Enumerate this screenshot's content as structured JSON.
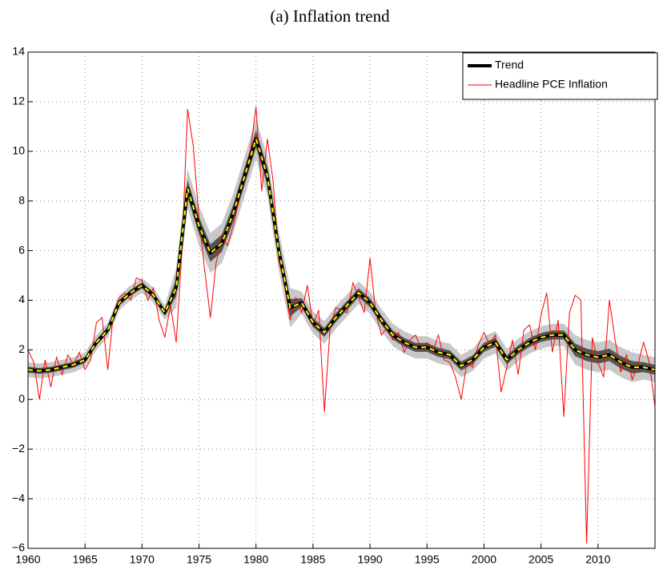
{
  "chart_data": {
    "type": "line",
    "title": "(a) Inflation trend",
    "xlim": [
      1960,
      2015
    ],
    "ylim": [
      -6,
      14
    ],
    "xticks": [
      1960,
      1965,
      1970,
      1975,
      1980,
      1985,
      1990,
      1995,
      2000,
      2005,
      2010
    ],
    "yticks": [
      {
        "value": -6,
        "label": "−6"
      },
      {
        "value": -4,
        "label": "−4"
      },
      {
        "value": -2,
        "label": "−2"
      },
      0,
      2,
      4,
      6,
      8,
      10,
      12,
      14
    ],
    "grid": true,
    "legend": "upper right",
    "dash_color": "#ffff00",
    "series": [
      {
        "name": "Trend",
        "color": "#000000",
        "x": [
          1960,
          1961,
          1962,
          1963,
          1964,
          1965,
          1966,
          1967,
          1968,
          1969,
          1970,
          1971,
          1972,
          1973,
          1974,
          1975,
          1976,
          1977,
          1978,
          1979,
          1980,
          1981,
          1982,
          1983,
          1984,
          1985,
          1986,
          1987,
          1988,
          1989,
          1990,
          1991,
          1992,
          1993,
          1994,
          1995,
          1996,
          1997,
          1998,
          1999,
          2000,
          2001,
          2002,
          2003,
          2004,
          2005,
          2006,
          2007,
          2008,
          2009,
          2010,
          2011,
          2012,
          2013,
          2014,
          2015
        ],
        "values": [
          1.2,
          1.15,
          1.2,
          1.3,
          1.4,
          1.6,
          2.3,
          2.8,
          3.9,
          4.3,
          4.6,
          4.2,
          3.5,
          4.5,
          8.5,
          7.0,
          5.9,
          6.3,
          7.5,
          9.0,
          10.5,
          9.0,
          6.0,
          3.7,
          3.9,
          3.1,
          2.7,
          3.3,
          3.8,
          4.3,
          3.9,
          3.2,
          2.6,
          2.3,
          2.1,
          2.1,
          1.9,
          1.8,
          1.35,
          1.6,
          2.1,
          2.3,
          1.6,
          2.0,
          2.3,
          2.5,
          2.6,
          2.6,
          2.0,
          1.8,
          1.7,
          1.8,
          1.5,
          1.3,
          1.3,
          1.2
        ]
      },
      {
        "name": "Headline PCE Inflation",
        "color": "#ff0000",
        "x": [
          1960,
          1960.5,
          1961,
          1961.5,
          1962,
          1962.5,
          1963,
          1963.5,
          1964,
          1964.5,
          1965,
          1965.5,
          1966,
          1966.5,
          1967,
          1967.5,
          1968,
          1968.5,
          1969,
          1969.5,
          1970,
          1970.5,
          1971,
          1971.5,
          1972,
          1972.5,
          1973,
          1973.5,
          1974,
          1974.5,
          1975,
          1975.5,
          1976,
          1976.5,
          1977,
          1977.5,
          1978,
          1978.5,
          1979,
          1979.5,
          1980,
          1980.5,
          1981,
          1981.5,
          1982,
          1982.5,
          1983,
          1983.5,
          1984,
          1984.5,
          1985,
          1985.5,
          1986,
          1986.5,
          1987,
          1987.5,
          1988,
          1988.5,
          1989,
          1989.5,
          1990,
          1990.5,
          1991,
          1991.5,
          1992,
          1992.5,
          1993,
          1993.5,
          1994,
          1994.5,
          1995,
          1995.5,
          1996,
          1996.5,
          1997,
          1997.5,
          1998,
          1998.5,
          1999,
          1999.5,
          2000,
          2000.5,
          2001,
          2001.5,
          2002,
          2002.5,
          2003,
          2003.5,
          2004,
          2004.5,
          2005,
          2005.5,
          2006,
          2006.5,
          2007,
          2007.5,
          2008,
          2008.5,
          2009,
          2009.5,
          2010,
          2010.5,
          2011,
          2011.5,
          2012,
          2012.5,
          2013,
          2013.5,
          2014,
          2014.5,
          2015
        ],
        "values": [
          2.0,
          1.5,
          0.0,
          1.6,
          0.5,
          1.7,
          1.0,
          1.8,
          1.4,
          1.9,
          1.2,
          1.6,
          3.1,
          3.3,
          1.2,
          3.5,
          4.1,
          4.3,
          4.0,
          4.9,
          4.8,
          4.0,
          4.5,
          3.2,
          2.5,
          3.8,
          2.3,
          6.0,
          11.7,
          10.2,
          7.3,
          5.2,
          3.3,
          5.5,
          6.6,
          6.2,
          7.0,
          8.0,
          9.2,
          10.0,
          11.8,
          8.4,
          10.5,
          8.8,
          5.6,
          4.6,
          3.2,
          4.1,
          3.5,
          4.6,
          3.0,
          3.6,
          -0.5,
          2.9,
          3.7,
          3.6,
          3.5,
          4.7,
          4.1,
          3.5,
          5.7,
          3.5,
          2.6,
          2.9,
          2.4,
          2.7,
          1.9,
          2.4,
          2.6,
          2.0,
          2.3,
          1.9,
          2.6,
          1.6,
          1.5,
          0.9,
          0.0,
          1.5,
          1.3,
          2.2,
          2.7,
          2.2,
          2.6,
          0.3,
          1.3,
          2.4,
          1.0,
          2.8,
          3.0,
          2.0,
          3.4,
          4.3,
          1.9,
          3.2,
          -0.7,
          3.5,
          4.2,
          4.0,
          -5.8,
          2.5,
          1.5,
          0.9,
          4.0,
          2.4,
          1.1,
          1.8,
          0.8,
          1.4,
          2.3,
          1.5,
          -0.3
        ]
      }
    ],
    "bands": [
      {
        "color": "#c8c8c8",
        "half_width": [
          0.3,
          0.3,
          0.3,
          0.3,
          0.3,
          0.3,
          0.3,
          0.3,
          0.3,
          0.3,
          0.3,
          0.3,
          0.3,
          0.8,
          0.8,
          0.8,
          0.8,
          0.8,
          0.8,
          0.8,
          0.8,
          0.8,
          0.8,
          0.8,
          0.45,
          0.45,
          0.45,
          0.45,
          0.45,
          0.45,
          0.45,
          0.45,
          0.45,
          0.45,
          0.45,
          0.45,
          0.45,
          0.45,
          0.45,
          0.45,
          0.45,
          0.45,
          0.45,
          0.45,
          0.45,
          0.45,
          0.45,
          0.45,
          0.6,
          0.6,
          0.6,
          0.6,
          0.6,
          0.6,
          0.5,
          0.5
        ]
      },
      {
        "color": "#555555",
        "half_width": [
          0.12,
          0.12,
          0.12,
          0.12,
          0.12,
          0.12,
          0.12,
          0.12,
          0.12,
          0.12,
          0.12,
          0.12,
          0.12,
          0.35,
          0.35,
          0.35,
          0.35,
          0.35,
          0.35,
          0.35,
          0.35,
          0.35,
          0.35,
          0.35,
          0.18,
          0.18,
          0.18,
          0.18,
          0.18,
          0.18,
          0.18,
          0.18,
          0.18,
          0.18,
          0.18,
          0.18,
          0.18,
          0.18,
          0.18,
          0.18,
          0.18,
          0.18,
          0.18,
          0.18,
          0.18,
          0.18,
          0.18,
          0.18,
          0.25,
          0.25,
          0.25,
          0.25,
          0.25,
          0.25,
          0.2,
          0.2
        ]
      }
    ]
  }
}
